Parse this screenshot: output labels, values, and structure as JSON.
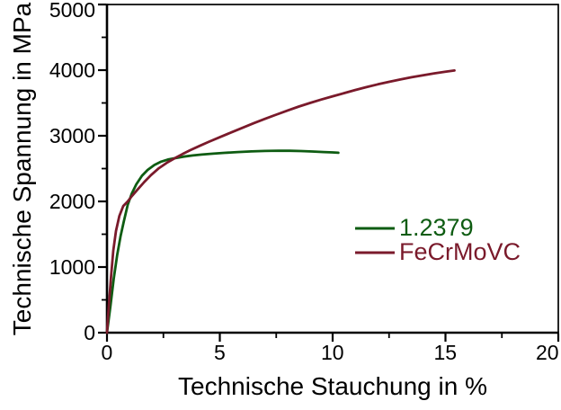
{
  "chart_data": {
    "type": "line",
    "title": "",
    "xlabel": "Technische Stauchung in %",
    "ylabel": "Technische Spannung in MPa",
    "xlim": [
      0,
      20
    ],
    "ylim": [
      0,
      5000
    ],
    "xticks": [
      0,
      5,
      10,
      15,
      20
    ],
    "xticks_minor": [
      2.5,
      7.5,
      12.5,
      17.5
    ],
    "yticks": [
      0,
      1000,
      2000,
      3000,
      4000,
      5000
    ],
    "yticks_minor": [
      500,
      1500,
      2500,
      3500,
      4500
    ],
    "grid": false,
    "background": "#ffffff",
    "axis_color": "#000000",
    "legend": {
      "position": "middle-right",
      "entries": [
        "1.2379",
        "FeCrMoVC"
      ]
    },
    "series": [
      {
        "name": "1.2379",
        "color": "#0e5c12",
        "points": [
          [
            0,
            0
          ],
          [
            0.15,
            400
          ],
          [
            0.3,
            820
          ],
          [
            0.45,
            1180
          ],
          [
            0.6,
            1470
          ],
          [
            0.75,
            1700
          ],
          [
            0.92,
            1950
          ],
          [
            1.1,
            2120
          ],
          [
            1.3,
            2260
          ],
          [
            1.55,
            2390
          ],
          [
            1.8,
            2480
          ],
          [
            2.1,
            2555
          ],
          [
            2.4,
            2605
          ],
          [
            2.7,
            2638
          ],
          [
            3.0,
            2658
          ],
          [
            3.4,
            2682
          ],
          [
            3.8,
            2700
          ],
          [
            4.2,
            2714
          ],
          [
            4.7,
            2728
          ],
          [
            5.2,
            2740
          ],
          [
            5.8,
            2752
          ],
          [
            6.4,
            2761
          ],
          [
            7.0,
            2768
          ],
          [
            7.6,
            2772
          ],
          [
            8.1,
            2771
          ],
          [
            8.6,
            2767
          ],
          [
            9.1,
            2760
          ],
          [
            9.6,
            2752
          ],
          [
            10.0,
            2746
          ],
          [
            10.25,
            2741
          ]
        ]
      },
      {
        "name": "FeCrMoVC",
        "color": "#7a1a2b",
        "points": [
          [
            0,
            0
          ],
          [
            0.08,
            400
          ],
          [
            0.18,
            850
          ],
          [
            0.28,
            1250
          ],
          [
            0.4,
            1550
          ],
          [
            0.55,
            1780
          ],
          [
            0.72,
            1930
          ],
          [
            0.92,
            2000
          ],
          [
            1.1,
            2080
          ],
          [
            1.35,
            2180
          ],
          [
            1.65,
            2295
          ],
          [
            1.95,
            2400
          ],
          [
            2.3,
            2505
          ],
          [
            2.65,
            2588
          ],
          [
            3.0,
            2658
          ],
          [
            3.35,
            2722
          ],
          [
            3.7,
            2782
          ],
          [
            4.1,
            2845
          ],
          [
            4.5,
            2905
          ],
          [
            5.0,
            2978
          ],
          [
            5.5,
            3050
          ],
          [
            6.0,
            3120
          ],
          [
            6.5,
            3190
          ],
          [
            7.0,
            3258
          ],
          [
            7.5,
            3322
          ],
          [
            8.0,
            3385
          ],
          [
            8.5,
            3445
          ],
          [
            9.0,
            3500
          ],
          [
            9.5,
            3552
          ],
          [
            10.0,
            3602
          ],
          [
            10.5,
            3650
          ],
          [
            11.0,
            3697
          ],
          [
            11.5,
            3741
          ],
          [
            12.0,
            3783
          ],
          [
            12.5,
            3822
          ],
          [
            13.0,
            3858
          ],
          [
            13.5,
            3892
          ],
          [
            14.0,
            3922
          ],
          [
            14.5,
            3950
          ],
          [
            15.0,
            3976
          ],
          [
            15.4,
            3995
          ]
        ]
      }
    ]
  }
}
